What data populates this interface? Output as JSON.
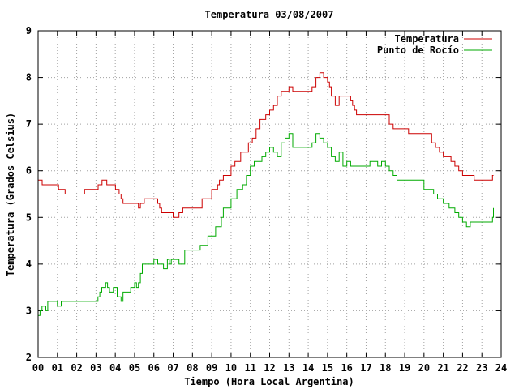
{
  "chart_data": {
    "type": "line",
    "title": "Temperatura 03/08/2007",
    "xlabel": "Tiempo (Hora Local Argentina)",
    "ylabel": "Temperatura (Grados Celsius)",
    "xlim": [
      0,
      24
    ],
    "ylim": [
      2,
      9
    ],
    "x_ticks": [
      "00",
      "01",
      "02",
      "03",
      "04",
      "05",
      "06",
      "07",
      "08",
      "09",
      "10",
      "11",
      "12",
      "13",
      "14",
      "15",
      "16",
      "17",
      "18",
      "19",
      "20",
      "21",
      "22",
      "23",
      "24"
    ],
    "y_ticks": [
      2,
      3,
      4,
      5,
      6,
      7,
      8,
      9
    ],
    "grid": true,
    "legend": "top-right",
    "series": [
      {
        "name": "Temperatura",
        "color": "#cc0000",
        "x": [
          0,
          0.2,
          0.21,
          1.05,
          1.06,
          1.4,
          2.4,
          2.41,
          3.1,
          3.11,
          3.3,
          3.31,
          3.55,
          3.56,
          4.0,
          4.01,
          4.2,
          4.3,
          4.4,
          4.5,
          5.1,
          5.2,
          5.3,
          5.5,
          6.1,
          6.2,
          6.3,
          6.4,
          6.9,
          7.0,
          7.3,
          7.5,
          8.0,
          8.5,
          9.0,
          9.3,
          9.4,
          9.6,
          10.0,
          10.1,
          10.2,
          10.5,
          10.9,
          11.1,
          11.3,
          11.5,
          11.6,
          11.8,
          12.0,
          12.2,
          12.4,
          12.6,
          12.8,
          13.0,
          13.2,
          13.6,
          14.0,
          14.2,
          14.4,
          14.6,
          14.8,
          15.0,
          15.1,
          15.2,
          15.4,
          15.6,
          16.0,
          16.2,
          16.3,
          16.4,
          16.5,
          17.0,
          18.0,
          18.2,
          18.4,
          18.6,
          19.2,
          20.2,
          20.4,
          20.6,
          20.8,
          21.0,
          21.2,
          21.4,
          21.6,
          21.8,
          22.0,
          22.1,
          22.5,
          22.6,
          23.0,
          23.5,
          23.55,
          23.6
        ],
        "values": [
          5.8,
          5.8,
          5.7,
          5.7,
          5.6,
          5.5,
          5.5,
          5.6,
          5.6,
          5.7,
          5.7,
          5.8,
          5.8,
          5.7,
          5.7,
          5.6,
          5.5,
          5.4,
          5.3,
          5.3,
          5.3,
          5.2,
          5.3,
          5.4,
          5.4,
          5.3,
          5.2,
          5.1,
          5.1,
          5.0,
          5.1,
          5.2,
          5.2,
          5.4,
          5.6,
          5.7,
          5.8,
          5.9,
          6.1,
          6.1,
          6.2,
          6.4,
          6.6,
          6.7,
          6.9,
          7.1,
          7.1,
          7.2,
          7.3,
          7.4,
          7.6,
          7.7,
          7.7,
          7.8,
          7.7,
          7.7,
          7.7,
          7.8,
          8.0,
          8.1,
          8.0,
          7.9,
          7.8,
          7.6,
          7.4,
          7.6,
          7.6,
          7.5,
          7.4,
          7.3,
          7.2,
          7.2,
          7.2,
          7.0,
          6.9,
          6.9,
          6.8,
          6.8,
          6.6,
          6.5,
          6.4,
          6.3,
          6.3,
          6.2,
          6.1,
          6.0,
          5.9,
          5.9,
          5.9,
          5.8,
          5.8,
          5.8,
          5.9,
          5.9
        ]
      },
      {
        "name": "Punto de Rocío",
        "color": "#00aa00",
        "x": [
          0,
          0.1,
          0.2,
          0.4,
          0.5,
          0.8,
          1.0,
          1.2,
          1.3,
          2.3,
          3.0,
          3.1,
          3.2,
          3.3,
          3.4,
          3.5,
          3.6,
          3.7,
          3.9,
          4.1,
          4.3,
          4.4,
          4.6,
          4.8,
          5.0,
          5.1,
          5.2,
          5.3,
          5.4,
          5.6,
          6.0,
          6.2,
          6.4,
          6.5,
          6.7,
          6.8,
          6.9,
          7.3,
          7.6,
          8.0,
          8.4,
          8.8,
          9.2,
          9.5,
          9.6,
          9.8,
          10.0,
          10.1,
          10.3,
          10.6,
          10.8,
          11.0,
          11.2,
          11.4,
          11.6,
          11.8,
          12.0,
          12.2,
          12.4,
          12.6,
          12.8,
          13.0,
          13.2,
          13.4,
          13.6,
          14.0,
          14.2,
          14.4,
          14.6,
          14.8,
          15.0,
          15.2,
          15.4,
          15.6,
          15.8,
          16.0,
          16.2,
          16.4,
          16.6,
          16.8,
          17.2,
          17.4,
          17.6,
          17.8,
          18.0,
          18.2,
          18.4,
          18.6,
          18.8,
          19.6,
          20.0,
          20.3,
          20.5,
          20.7,
          21.0,
          21.3,
          21.6,
          21.8,
          22.0,
          22.2,
          22.4,
          23.0,
          23.5,
          23.55,
          23.6
        ],
        "values": [
          2.9,
          3.0,
          3.1,
          3.0,
          3.2,
          3.2,
          3.1,
          3.2,
          3.2,
          3.2,
          3.2,
          3.3,
          3.4,
          3.5,
          3.5,
          3.6,
          3.5,
          3.4,
          3.5,
          3.3,
          3.2,
          3.4,
          3.4,
          3.5,
          3.6,
          3.5,
          3.6,
          3.8,
          4.0,
          4.0,
          4.1,
          4.0,
          4.0,
          3.9,
          4.1,
          4.0,
          4.1,
          4.0,
          4.3,
          4.3,
          4.4,
          4.6,
          4.8,
          5.0,
          5.2,
          5.2,
          5.4,
          5.4,
          5.6,
          5.7,
          5.9,
          6.1,
          6.2,
          6.2,
          6.3,
          6.4,
          6.5,
          6.4,
          6.3,
          6.6,
          6.7,
          6.8,
          6.5,
          6.5,
          6.5,
          6.5,
          6.6,
          6.8,
          6.7,
          6.6,
          6.5,
          6.3,
          6.2,
          6.4,
          6.1,
          6.2,
          6.1,
          6.1,
          6.1,
          6.1,
          6.2,
          6.2,
          6.1,
          6.2,
          6.1,
          6.0,
          5.9,
          5.8,
          5.8,
          5.8,
          5.6,
          5.6,
          5.5,
          5.4,
          5.3,
          5.2,
          5.1,
          5.0,
          4.9,
          4.8,
          4.9,
          4.9,
          4.9,
          5.0,
          5.2
        ]
      }
    ]
  }
}
